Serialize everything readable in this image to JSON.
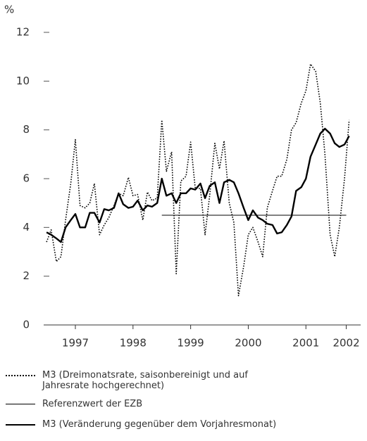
{
  "chart_data": {
    "type": "line",
    "y_label": "%",
    "ylim": [
      0,
      12
    ],
    "yticks": [
      0,
      2,
      4,
      6,
      8,
      10,
      12
    ],
    "xlim": [
      1996.95,
      2002.45
    ],
    "xticks": [
      {
        "value": 1997.5,
        "label": "1997"
      },
      {
        "value": 1998.5,
        "label": "1998"
      },
      {
        "value": 1999.5,
        "label": "1999"
      },
      {
        "value": 2000.5,
        "label": "2000"
      },
      {
        "value": 2001.5,
        "label": "2001"
      },
      {
        "value": 2002.2,
        "label": "2002"
      }
    ],
    "x": [
      1997.0,
      1997.08,
      1997.17,
      1997.25,
      1997.33,
      1997.42,
      1997.5,
      1997.58,
      1997.67,
      1997.75,
      1997.83,
      1997.92,
      1998.0,
      1998.08,
      1998.17,
      1998.25,
      1998.33,
      1998.42,
      1998.5,
      1998.58,
      1998.67,
      1998.75,
      1998.83,
      1998.92,
      1999.0,
      1999.08,
      1999.17,
      1999.25,
      1999.33,
      1999.42,
      1999.5,
      1999.58,
      1999.67,
      1999.75,
      1999.83,
      1999.92,
      2000.0,
      2000.08,
      2000.17,
      2000.25,
      2000.33,
      2000.42,
      2000.5,
      2000.58,
      2000.67,
      2000.75,
      2000.83,
      2000.92,
      2001.0,
      2001.08,
      2001.17,
      2001.25,
      2001.33,
      2001.42,
      2001.5,
      2001.58,
      2001.67,
      2001.75,
      2001.83,
      2001.92,
      2002.0,
      2002.08,
      2002.17,
      2002.25
    ],
    "series": [
      {
        "name": "M3 (Dreimonatsrate, saisonbereinigt und auf Jahresrate hochgerechnet)",
        "color": "#000000",
        "style": "dotted",
        "values": [
          3.4,
          3.9,
          2.6,
          2.8,
          4.3,
          5.8,
          7.6,
          4.9,
          4.8,
          5.0,
          5.8,
          3.7,
          4.1,
          4.4,
          4.9,
          5.4,
          5.3,
          6.05,
          5.3,
          5.35,
          4.3,
          5.45,
          5.1,
          5.2,
          8.4,
          6.3,
          7.1,
          2.1,
          5.9,
          6.1,
          7.5,
          5.6,
          5.6,
          3.7,
          5.3,
          7.45,
          6.4,
          7.55,
          5.0,
          4.2,
          1.2,
          2.4,
          3.7,
          4.0,
          3.4,
          2.8,
          4.8,
          5.5,
          6.1,
          6.1,
          6.8,
          8.0,
          8.3,
          9.1,
          9.6,
          10.7,
          10.4,
          9.1,
          7.0,
          3.7,
          2.8,
          4.0,
          6.0,
          8.4
        ]
      },
      {
        "name": "Referenzwert der EZB",
        "color": "#000000",
        "style": "thin",
        "x": [
          1999.0,
          2002.2
        ],
        "values": [
          4.5,
          4.5
        ]
      },
      {
        "name": "M3 (Veränderung gegenüber dem Vorjahresmonat)",
        "color": "#000000",
        "style": "thick",
        "values": [
          3.8,
          3.7,
          3.55,
          3.4,
          4.0,
          4.3,
          4.55,
          4.0,
          4.0,
          4.6,
          4.6,
          4.2,
          4.75,
          4.7,
          4.8,
          5.4,
          4.95,
          4.8,
          4.85,
          5.1,
          4.7,
          4.9,
          4.85,
          5.0,
          6.0,
          5.3,
          5.4,
          5.0,
          5.4,
          5.4,
          5.6,
          5.55,
          5.8,
          5.2,
          5.7,
          5.85,
          5.0,
          5.85,
          5.95,
          5.85,
          5.4,
          4.8,
          4.3,
          4.7,
          4.4,
          4.3,
          4.15,
          4.1,
          3.75,
          3.8,
          4.1,
          4.45,
          5.5,
          5.65,
          6.0,
          6.9,
          7.4,
          7.85,
          8.05,
          7.85,
          7.45,
          7.3,
          7.4,
          7.75
        ]
      }
    ]
  }
}
